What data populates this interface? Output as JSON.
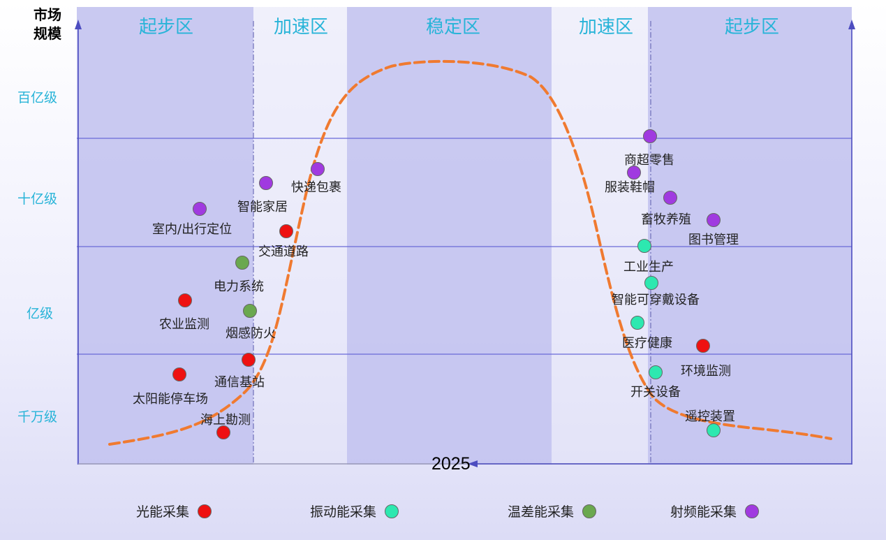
{
  "y_axis": {
    "title_line1": "市场",
    "title_line2": "规模",
    "levels": [
      "百亿级",
      "十亿级",
      "亿级",
      "千万级"
    ]
  },
  "x_axis": {
    "year": "2025"
  },
  "zones": [
    "起步区",
    "加速区",
    "稳定区",
    "加速区",
    "起步区"
  ],
  "categories": {
    "light": {
      "label": "光能采集",
      "color": "#ee1111"
    },
    "vibration": {
      "label": "振动能采集",
      "color": "#2de8b0"
    },
    "thermal": {
      "label": "温差能采集",
      "color": "#6aa84f"
    },
    "rf": {
      "label": "射频能采集",
      "color": "#a03ae0"
    }
  },
  "points": [
    {
      "label": "室内/出行定位",
      "category": "rf"
    },
    {
      "label": "智能家居",
      "category": "rf"
    },
    {
      "label": "快递包裹",
      "category": "rf"
    },
    {
      "label": "交通道路",
      "category": "light"
    },
    {
      "label": "电力系统",
      "category": "thermal"
    },
    {
      "label": "农业监测",
      "category": "light"
    },
    {
      "label": "烟感防火",
      "category": "thermal"
    },
    {
      "label": "通信基站",
      "category": "light"
    },
    {
      "label": "太阳能停车场",
      "category": "light"
    },
    {
      "label": "海上勘测",
      "category": "light"
    },
    {
      "label": "商超零售",
      "category": "rf"
    },
    {
      "label": "服装鞋帽",
      "category": "rf"
    },
    {
      "label": "畜牧养殖",
      "category": "rf"
    },
    {
      "label": "图书管理",
      "category": "rf"
    },
    {
      "label": "工业生产",
      "category": "vibration"
    },
    {
      "label": "智能可穿戴设备",
      "category": "vibration"
    },
    {
      "label": "医疗健康",
      "category": "vibration"
    },
    {
      "label": "环境监测",
      "category": "light"
    },
    {
      "label": "开关设备",
      "category": "vibration"
    },
    {
      "label": "遥控装置",
      "category": "vibration"
    }
  ],
  "curve_color": "#f07a30"
}
